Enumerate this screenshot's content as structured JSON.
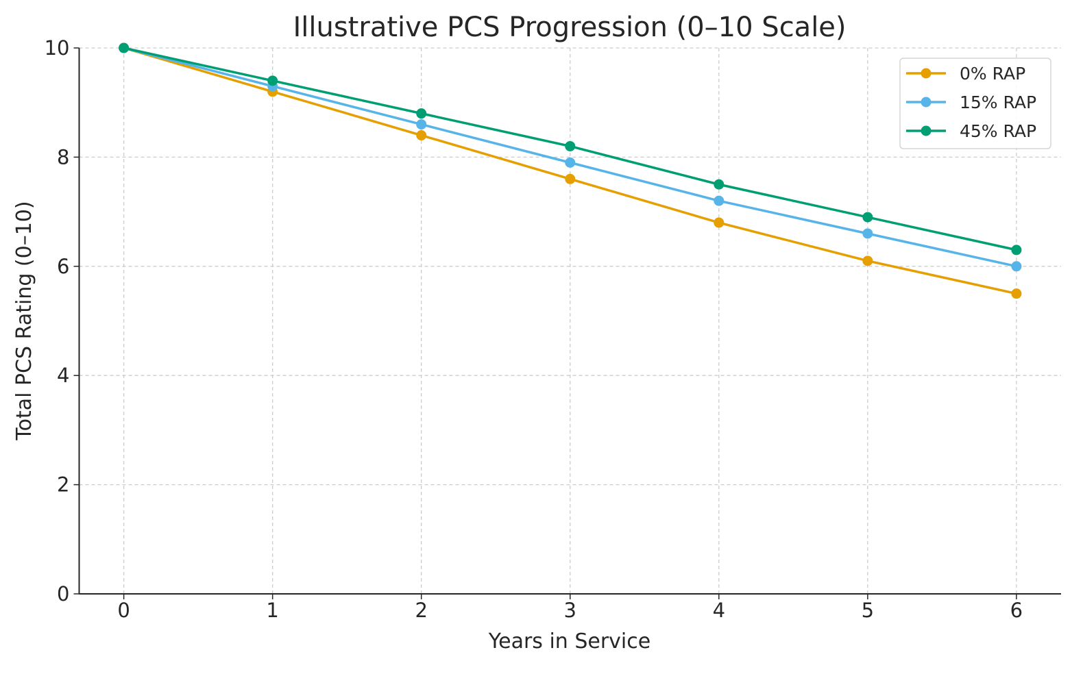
{
  "chart_data": {
    "type": "line",
    "title": "Illustrative PCS Progression (0–10 Scale)",
    "xlabel": "Years in Service",
    "ylabel": "Total PCS Rating (0–10)",
    "xlim": [
      -0.3,
      6.3
    ],
    "ylim": [
      0,
      10
    ],
    "xticks": [
      0,
      1,
      2,
      3,
      4,
      5,
      6
    ],
    "yticks": [
      0,
      2,
      4,
      6,
      8,
      10
    ],
    "grid": true,
    "legend_position": "top-right",
    "x": [
      0,
      1,
      2,
      3,
      4,
      5,
      6
    ],
    "series": [
      {
        "name": "0% RAP",
        "color": "#E69F00",
        "marker": "circle",
        "values": [
          10,
          9.2,
          8.4,
          7.6,
          6.8,
          6.1,
          5.5
        ]
      },
      {
        "name": "15% RAP",
        "color": "#56B4E9",
        "marker": "circle",
        "values": [
          10,
          9.3,
          8.6,
          7.9,
          7.2,
          6.6,
          6.0
        ]
      },
      {
        "name": "45% RAP",
        "color": "#009E73",
        "marker": "circle",
        "values": [
          10,
          9.4,
          8.8,
          8.2,
          7.5,
          6.9,
          6.3
        ]
      }
    ]
  }
}
